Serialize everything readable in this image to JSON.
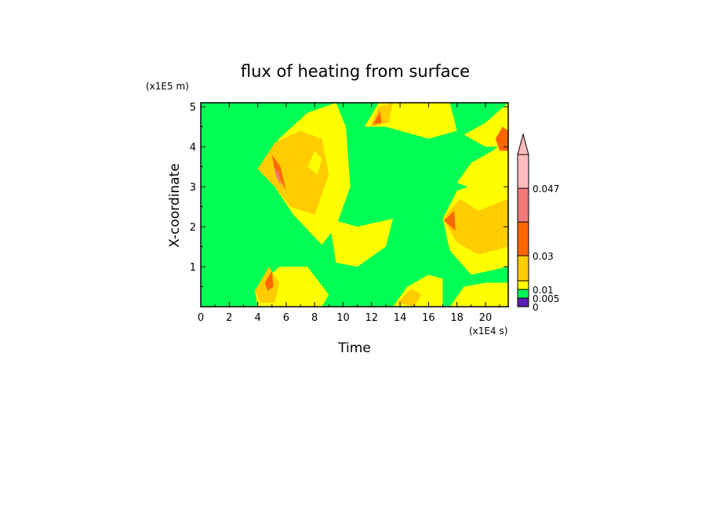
{
  "chart_data": {
    "type": "heatmap",
    "title": "flux of heating from surface",
    "xlabel": "Time",
    "ylabel": "X-coordinate",
    "x_unit": "(x1E4 s)",
    "y_unit": "(x1E5 m)",
    "xlim": [
      0,
      21.6
    ],
    "ylim": [
      0,
      5.1
    ],
    "x_ticks": [
      "0",
      "2",
      "4",
      "6",
      "8",
      "10",
      "12",
      "14",
      "16",
      "18",
      "20"
    ],
    "y_ticks": [
      "1",
      "2",
      "3",
      "4",
      "5"
    ],
    "colorbar": {
      "levels": [
        {
          "from": 0,
          "to": 0.005,
          "color": "#5a1fb4"
        },
        {
          "from": 0.005,
          "to": 0.01,
          "color": "#00ff55"
        },
        {
          "from": 0.01,
          "to": 0.02,
          "color": "#ffff00"
        },
        {
          "from": 0.02,
          "to": 0.03,
          "color": "#ffcc00"
        },
        {
          "from": 0.03,
          "to": 0.038,
          "color": "#ff6600"
        },
        {
          "from": 0.038,
          "to": 0.047,
          "color": "#f07878"
        },
        {
          "from": 0.047,
          "to": 0.06,
          "color": "#ffbbbb"
        }
      ],
      "labels": [
        "0.047",
        "0.03",
        "0.01",
        "0.005",
        "0"
      ],
      "extend": "max"
    },
    "background_level_color": "#00ff55",
    "regions": [
      {
        "level": 2,
        "points": [
          [
            4.0,
            3.45
          ],
          [
            5.5,
            4.2
          ],
          [
            7.5,
            4.85
          ],
          [
            9.5,
            5.1
          ],
          [
            10.2,
            4.5
          ],
          [
            10.5,
            3.0
          ],
          [
            9.5,
            2.0
          ],
          [
            8.5,
            1.55
          ],
          [
            6.5,
            2.3
          ],
          [
            5.2,
            3.0
          ]
        ]
      },
      {
        "level": 3,
        "points": [
          [
            4.0,
            3.45
          ],
          [
            5.2,
            4.1
          ],
          [
            7.0,
            4.4
          ],
          [
            8.5,
            4.2
          ],
          [
            9.0,
            3.3
          ],
          [
            8.0,
            2.3
          ],
          [
            6.3,
            2.5
          ],
          [
            5.2,
            3.0
          ]
        ]
      },
      {
        "level": 4,
        "points": [
          [
            5.0,
            3.8
          ],
          [
            5.6,
            3.5
          ],
          [
            6.0,
            2.9
          ],
          [
            5.7,
            3.1
          ],
          [
            5.2,
            3.4
          ]
        ]
      },
      {
        "level": 5,
        "points": [
          [
            5.1,
            3.55
          ],
          [
            5.5,
            3.3
          ],
          [
            5.7,
            3.0
          ],
          [
            5.3,
            3.25
          ]
        ]
      },
      {
        "level": 2,
        "points": [
          [
            9.0,
            2.2
          ],
          [
            11.0,
            2.0
          ],
          [
            13.5,
            2.2
          ],
          [
            13.0,
            1.5
          ],
          [
            11.0,
            1.0
          ],
          [
            9.5,
            1.1
          ]
        ]
      },
      {
        "level": 2,
        "points": [
          [
            3.8,
            0.4
          ],
          [
            5.5,
            1.0
          ],
          [
            7.5,
            1.0
          ],
          [
            9.0,
            0.3
          ],
          [
            8.5,
            0.0
          ],
          [
            4.0,
            0.0
          ]
        ]
      },
      {
        "level": 3,
        "points": [
          [
            3.8,
            0.4
          ],
          [
            4.8,
            1.0
          ],
          [
            5.5,
            0.6
          ],
          [
            5.2,
            0.1
          ],
          [
            4.2,
            0.1
          ]
        ]
      },
      {
        "level": 4,
        "points": [
          [
            4.5,
            0.6
          ],
          [
            5.0,
            0.9
          ],
          [
            5.1,
            0.5
          ],
          [
            4.7,
            0.4
          ]
        ]
      },
      {
        "level": 2,
        "points": [
          [
            11.5,
            4.5
          ],
          [
            13.0,
            4.5
          ],
          [
            16.0,
            4.2
          ],
          [
            18.0,
            4.4
          ],
          [
            17.5,
            5.1
          ],
          [
            12.5,
            5.1
          ]
        ]
      },
      {
        "level": 3,
        "points": [
          [
            11.9,
            4.5
          ],
          [
            12.5,
            5.0
          ],
          [
            13.5,
            5.1
          ],
          [
            13.2,
            4.6
          ]
        ]
      },
      {
        "level": 4,
        "points": [
          [
            12.1,
            4.55
          ],
          [
            12.6,
            4.9
          ],
          [
            12.7,
            4.6
          ]
        ]
      },
      {
        "level": 2,
        "points": [
          [
            13.5,
            0.0
          ],
          [
            14.5,
            0.5
          ],
          [
            16.0,
            0.8
          ],
          [
            17.0,
            0.7
          ],
          [
            17.0,
            0.0
          ]
        ]
      },
      {
        "level": 3,
        "points": [
          [
            13.8,
            0.1
          ],
          [
            14.8,
            0.45
          ],
          [
            15.5,
            0.3
          ],
          [
            15.0,
            0.0
          ]
        ]
      },
      {
        "level": 2,
        "points": [
          [
            17.0,
            2.2
          ],
          [
            18.0,
            2.9
          ],
          [
            19.5,
            3.1
          ],
          [
            21.6,
            3.4
          ],
          [
            21.6,
            1.0
          ],
          [
            19.0,
            0.8
          ],
          [
            17.5,
            1.4
          ]
        ]
      },
      {
        "level": 3,
        "points": [
          [
            17.0,
            2.2
          ],
          [
            18.2,
            2.7
          ],
          [
            19.5,
            2.4
          ],
          [
            21.6,
            2.7
          ],
          [
            21.6,
            1.5
          ],
          [
            19.5,
            1.3
          ],
          [
            18.0,
            1.6
          ]
        ]
      },
      {
        "level": 4,
        "points": [
          [
            17.1,
            2.15
          ],
          [
            17.8,
            2.4
          ],
          [
            17.9,
            1.9
          ]
        ]
      },
      {
        "level": 2,
        "points": [
          [
            17.5,
            0.0
          ],
          [
            18.5,
            0.5
          ],
          [
            20.0,
            0.6
          ],
          [
            21.6,
            0.6
          ],
          [
            21.6,
            0.0
          ]
        ]
      },
      {
        "level": 2,
        "points": [
          [
            18.0,
            3.1
          ],
          [
            19.0,
            3.6
          ],
          [
            20.5,
            3.9
          ],
          [
            21.6,
            4.2
          ],
          [
            21.6,
            2.9
          ],
          [
            19.5,
            2.9
          ]
        ]
      },
      {
        "level": 2,
        "points": [
          [
            18.5,
            4.3
          ],
          [
            20.0,
            4.6
          ],
          [
            21.6,
            5.1
          ],
          [
            21.6,
            4.0
          ],
          [
            20.0,
            4.0
          ]
        ]
      },
      {
        "level": 4,
        "points": [
          [
            20.7,
            4.2
          ],
          [
            21.2,
            4.5
          ],
          [
            21.6,
            4.4
          ],
          [
            21.6,
            3.9
          ],
          [
            21.0,
            3.9
          ]
        ]
      },
      {
        "level": 2,
        "points": [
          [
            7.5,
            3.5
          ],
          [
            8.0,
            3.9
          ],
          [
            8.5,
            3.7
          ],
          [
            8.2,
            3.3
          ]
        ]
      }
    ]
  }
}
